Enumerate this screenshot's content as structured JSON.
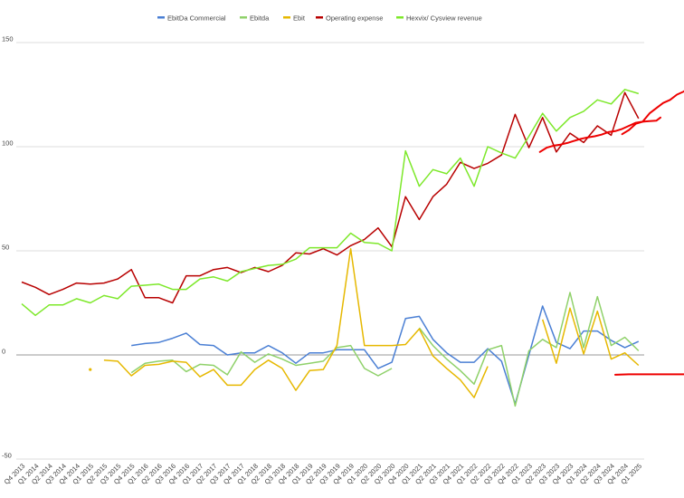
{
  "chart_data": {
    "type": "line",
    "title": "",
    "xlabel": "",
    "ylabel": "",
    "ylim": [
      -50,
      150
    ],
    "y_ticks": [
      -50,
      0,
      50,
      100,
      150
    ],
    "grid": true,
    "legend_position": "top",
    "categories": [
      "Q4 2013",
      "Q1 2014",
      "Q2 2014",
      "Q3 2014",
      "Q4 2014",
      "Q1 2015",
      "Q2 2015",
      "Q3 2015",
      "Q4 2015",
      "Q1 2016",
      "Q2 2016",
      "Q3 2016",
      "Q4 2016",
      "Q1 2017",
      "Q2 2017",
      "Q3 2017",
      "Q4 2017",
      "Q1 2018",
      "Q2 2018",
      "Q3 2018",
      "Q4 2018",
      "Q1 2019",
      "Q2 2019",
      "Q3 2019",
      "Q4 2019",
      "Q1 2020",
      "Q2 2020",
      "Q3 2020",
      "Q4 2020",
      "Q1 2021",
      "Q2 2021",
      "Q3 2021",
      "Q4 2021",
      "Q1 2022",
      "Q2 2022",
      "Q3 2022",
      "Q4 2022",
      "Q1 2023",
      "Q2 2023",
      "Q3 2023",
      "Q4 2023",
      "Q1 2024",
      "Q2 2024",
      "Q3 2024",
      "Q4 2024",
      "Q1 2025"
    ],
    "series": [
      {
        "name": "EbitDa Commercial",
        "color": "#4a7fd4",
        "values": [
          null,
          null,
          null,
          null,
          null,
          null,
          null,
          null,
          4.5,
          5.5,
          6,
          8,
          10.5,
          5,
          4.5,
          0,
          1,
          1,
          4.5,
          1,
          -4,
          1,
          1,
          2.5,
          2.5,
          2.5,
          -6.5,
          -3.5,
          17.5,
          18.5,
          7.5,
          1,
          -3.5,
          -3.5,
          3,
          -3,
          -23.5,
          0,
          23.5,
          6,
          3,
          11.5,
          11.5,
          7,
          3.5,
          6.5
        ]
      },
      {
        "name": "Ebitda",
        "color": "#8fd16a",
        "values": [
          null,
          null,
          null,
          null,
          null,
          null,
          null,
          null,
          -8.5,
          -4,
          -3,
          -2.5,
          -8,
          -4.5,
          -5,
          -9.5,
          1.5,
          -3.5,
          0.5,
          -2,
          -5,
          -4,
          -3,
          3.5,
          4.5,
          -6.5,
          -10,
          -6.5,
          null,
          13,
          4.5,
          -2,
          -7.5,
          -14,
          2.5,
          4.5,
          -24.5,
          2,
          7.5,
          3.5,
          30,
          3.5,
          28,
          4.5,
          8.5,
          2
        ]
      },
      {
        "name": "Ebit",
        "color": "#e6b800",
        "values": [
          null,
          null,
          null,
          null,
          null,
          null,
          -2.5,
          -3,
          -10,
          -5,
          -4.5,
          -3,
          -3.5,
          -10.5,
          -7,
          -14.5,
          -14.5,
          -7,
          -2.5,
          -6.5,
          -17,
          -7.5,
          -7,
          4.5,
          51,
          4.5,
          4.5,
          4.5,
          5,
          12.5,
          -0.5,
          -6.5,
          -12,
          -20.5,
          -5.5,
          null,
          null,
          null,
          17,
          -4,
          22.5,
          0.5,
          21,
          -2,
          1,
          -5
        ]
      },
      {
        "name": "Operating expense",
        "color": "#b80000",
        "values": [
          35,
          32.5,
          29,
          31.5,
          34.5,
          34,
          34.5,
          36.5,
          41,
          27.5,
          27.5,
          25,
          38,
          38,
          41,
          42,
          39.5,
          42,
          40,
          43,
          49,
          48.5,
          51,
          48,
          52.5,
          55.5,
          61,
          52,
          76,
          65,
          76,
          82,
          92.5,
          89.5,
          92,
          96,
          115.5,
          99.5,
          114,
          97.5,
          106.5,
          102,
          110,
          105.5,
          126,
          113.5
        ]
      },
      {
        "name": "Hexvix/ Cysview revenue",
        "color": "#7de82a",
        "values": [
          24.5,
          19,
          24,
          24,
          27,
          25,
          28.5,
          27,
          33,
          33.5,
          34,
          31.5,
          31.5,
          36.5,
          37.5,
          35.5,
          40,
          41.5,
          43,
          43.5,
          46,
          51.5,
          51.5,
          51.5,
          58.5,
          54,
          53.5,
          50,
          98,
          81,
          89,
          87,
          94.5,
          81,
          100,
          97,
          94.5,
          105,
          116,
          107.5,
          114,
          117,
          122.5,
          120.5,
          127.5,
          125.5
        ]
      }
    ],
    "trend_lines": [
      {
        "color": "#ee0000",
        "x_start": 37.8,
        "points": [
          [
            37.8,
            97.5
          ],
          [
            38.3,
            99.5
          ],
          [
            38.8,
            100.5
          ],
          [
            39.3,
            101
          ],
          [
            39.8,
            101.8
          ],
          [
            40.3,
            102.8
          ],
          [
            40.8,
            103.8
          ],
          [
            41.3,
            104.5
          ],
          [
            41.8,
            105
          ],
          [
            42.3,
            105.8
          ],
          [
            42.8,
            107
          ],
          [
            43.3,
            107.5
          ],
          [
            43.8,
            108.5
          ],
          [
            44.3,
            110
          ],
          [
            44.8,
            111.5
          ],
          [
            45.3,
            112
          ],
          [
            45.8,
            112.3
          ],
          [
            46.3,
            112.5
          ],
          [
            46.6,
            114
          ]
        ]
      },
      {
        "color": "#ee0000",
        "points": [
          [
            43.8,
            106
          ],
          [
            44.3,
            108
          ],
          [
            44.8,
            111
          ],
          [
            45.3,
            112
          ],
          [
            45.8,
            116
          ],
          [
            46.3,
            118.5
          ],
          [
            46.8,
            121
          ],
          [
            47.3,
            122.5
          ],
          [
            47.8,
            125
          ],
          [
            48.3,
            126.5
          ],
          [
            48.8,
            129
          ]
        ]
      },
      {
        "color": "#ee0000",
        "points": [
          [
            43.3,
            -9.5
          ],
          [
            44.3,
            -9.3
          ],
          [
            45.3,
            -9.3
          ],
          [
            46.3,
            -9.3
          ],
          [
            47.3,
            -9.3
          ],
          [
            48.3,
            -9.3
          ]
        ]
      }
    ],
    "dots": [
      {
        "color": "#e6b800",
        "x": 5,
        "y": -7
      }
    ]
  }
}
